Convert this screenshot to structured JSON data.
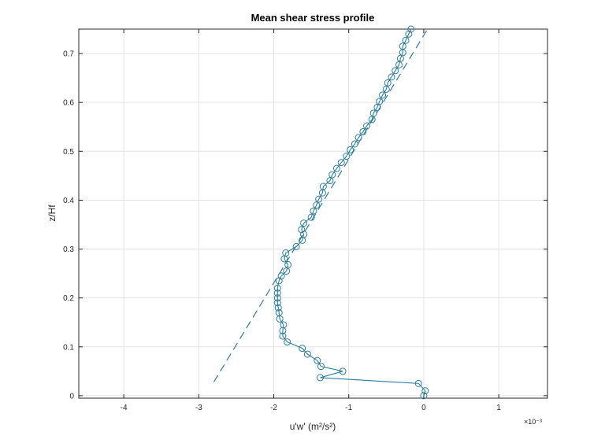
{
  "chart_data": {
    "type": "scatter",
    "title": "Mean shear stress profile",
    "xlabel": "u'w'   (m²/s²)",
    "ylabel": "z/Hf",
    "x_multiplier_label": "×10⁻³",
    "xlim": [
      -4.6,
      1.65
    ],
    "ylim": [
      -0.005,
      0.75
    ],
    "xticks": [
      -4,
      -3,
      -2,
      -1,
      0,
      1
    ],
    "yticks": [
      0,
      0.1,
      0.2,
      0.3,
      0.4,
      0.5,
      0.6,
      0.7
    ],
    "grid": true,
    "colors": {
      "series": "#2b7ea0"
    },
    "series": [
      {
        "style": "line-circle-markers",
        "points": [
          [
            0.0,
            0.0
          ],
          [
            0.02,
            0.01
          ],
          [
            -0.07,
            0.025
          ],
          [
            -1.38,
            0.037
          ],
          [
            -1.08,
            0.05
          ],
          [
            -1.37,
            0.06
          ],
          [
            -1.42,
            0.072
          ],
          [
            -1.55,
            0.085
          ],
          [
            -1.62,
            0.097
          ],
          [
            -1.82,
            0.11
          ],
          [
            -1.88,
            0.122
          ],
          [
            -1.88,
            0.133
          ],
          [
            -1.87,
            0.145
          ],
          [
            -1.92,
            0.157
          ],
          [
            -1.93,
            0.17
          ],
          [
            -1.94,
            0.18
          ],
          [
            -1.95,
            0.19
          ],
          [
            -1.95,
            0.2
          ],
          [
            -1.95,
            0.21
          ],
          [
            -1.95,
            0.22
          ],
          [
            -1.93,
            0.235
          ],
          [
            -1.9,
            0.245
          ],
          [
            -1.83,
            0.255
          ],
          [
            -1.81,
            0.268
          ],
          [
            -1.86,
            0.28
          ],
          [
            -1.84,
            0.292
          ],
          [
            -1.7,
            0.305
          ],
          [
            -1.62,
            0.318
          ],
          [
            -1.6,
            0.33
          ],
          [
            -1.63,
            0.34
          ],
          [
            -1.6,
            0.353
          ],
          [
            -1.5,
            0.365
          ],
          [
            -1.47,
            0.378
          ],
          [
            -1.43,
            0.39
          ],
          [
            -1.4,
            0.402
          ],
          [
            -1.35,
            0.415
          ],
          [
            -1.34,
            0.428
          ],
          [
            -1.25,
            0.44
          ],
          [
            -1.22,
            0.452
          ],
          [
            -1.16,
            0.465
          ],
          [
            -1.1,
            0.477
          ],
          [
            -1.03,
            0.49
          ],
          [
            -0.98,
            0.503
          ],
          [
            -0.92,
            0.515
          ],
          [
            -0.87,
            0.528
          ],
          [
            -0.81,
            0.54
          ],
          [
            -0.76,
            0.552
          ],
          [
            -0.69,
            0.565
          ],
          [
            -0.67,
            0.578
          ],
          [
            -0.62,
            0.59
          ],
          [
            -0.59,
            0.602
          ],
          [
            -0.55,
            0.615
          ],
          [
            -0.5,
            0.627
          ],
          [
            -0.48,
            0.64
          ],
          [
            -0.43,
            0.652
          ],
          [
            -0.38,
            0.665
          ],
          [
            -0.33,
            0.677
          ],
          [
            -0.31,
            0.69
          ],
          [
            -0.28,
            0.702
          ],
          [
            -0.28,
            0.715
          ],
          [
            -0.24,
            0.727
          ],
          [
            -0.2,
            0.74
          ],
          [
            -0.17,
            0.75
          ]
        ]
      },
      {
        "style": "dashed-line",
        "points": [
          [
            -2.8,
            0.028
          ],
          [
            0.05,
            0.75
          ]
        ]
      }
    ]
  }
}
